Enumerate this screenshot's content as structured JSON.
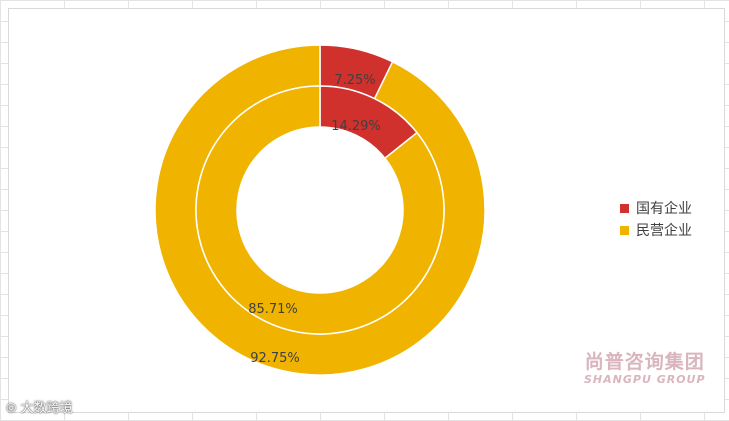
{
  "chart_data": {
    "type": "pie",
    "variant": "doughnut",
    "rings": [
      {
        "ring": "outer",
        "values": [
          7.25,
          92.75
        ],
        "labels": [
          "7.25%",
          "92.75%"
        ]
      },
      {
        "ring": "inner",
        "values": [
          14.29,
          85.71
        ],
        "labels": [
          "14.29%",
          "85.71%"
        ]
      }
    ],
    "legend": [
      {
        "name": "国有企业",
        "color": "#d0312d"
      },
      {
        "name": "民营企业",
        "color": "#f0b400"
      }
    ],
    "legend_position": "right"
  },
  "watermark": {
    "cn": "尚普咨询集团",
    "en": "SHANGPU GROUP"
  },
  "corner_mark": {
    "text": "大数跨境",
    "icon": "camera-icon"
  }
}
